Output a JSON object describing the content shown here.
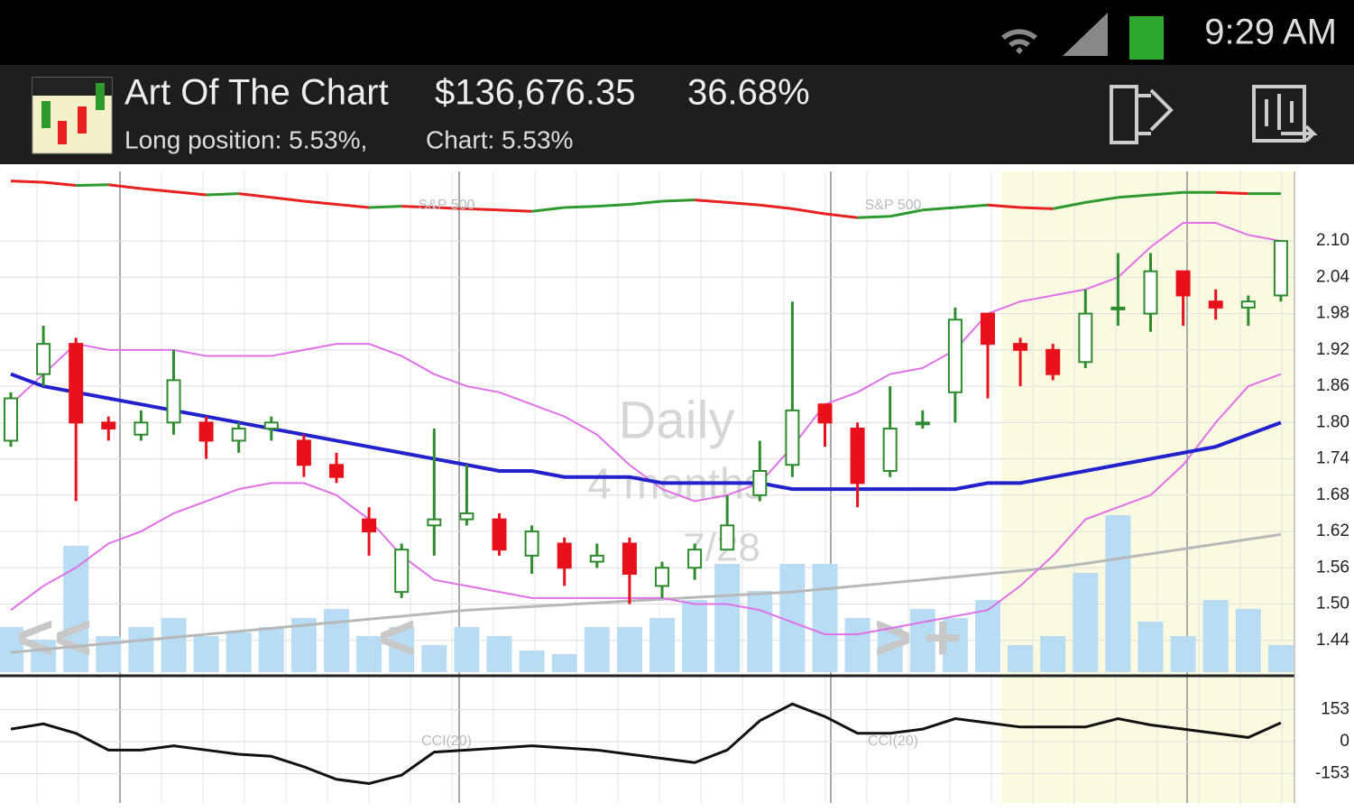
{
  "status_bar": {
    "time": "9:29 AM"
  },
  "header": {
    "app": "Art Of The Chart",
    "value": "$136,676.35",
    "return": "36.68%",
    "position": "Long position: 5.53%,",
    "chart": "Chart: 5.53%"
  },
  "chart_data": {
    "type": "candlestick",
    "ohlc": [
      [
        1.77,
        1.85,
        1.76,
        1.84
      ],
      [
        1.88,
        1.96,
        1.86,
        1.93
      ],
      [
        1.93,
        1.94,
        1.67,
        1.8
      ],
      [
        1.8,
        1.81,
        1.77,
        1.79
      ],
      [
        1.78,
        1.82,
        1.77,
        1.8
      ],
      [
        1.8,
        1.92,
        1.78,
        1.87
      ],
      [
        1.8,
        1.81,
        1.74,
        1.77
      ],
      [
        1.77,
        1.8,
        1.75,
        1.79
      ],
      [
        1.79,
        1.81,
        1.77,
        1.8
      ],
      [
        1.77,
        1.78,
        1.71,
        1.73
      ],
      [
        1.73,
        1.75,
        1.7,
        1.71
      ],
      [
        1.64,
        1.66,
        1.58,
        1.62
      ],
      [
        1.52,
        1.6,
        1.51,
        1.59
      ],
      [
        1.63,
        1.79,
        1.58,
        1.64
      ],
      [
        1.64,
        1.73,
        1.63,
        1.65
      ],
      [
        1.64,
        1.65,
        1.58,
        1.59
      ],
      [
        1.58,
        1.63,
        1.55,
        1.62
      ],
      [
        1.6,
        1.61,
        1.53,
        1.56
      ],
      [
        1.57,
        1.6,
        1.56,
        1.58
      ],
      [
        1.6,
        1.61,
        1.5,
        1.55
      ],
      [
        1.53,
        1.57,
        1.51,
        1.56
      ],
      [
        1.56,
        1.6,
        1.54,
        1.59
      ],
      [
        1.59,
        1.68,
        1.59,
        1.63
      ],
      [
        1.68,
        1.77,
        1.67,
        1.72
      ],
      [
        1.73,
        2.0,
        1.71,
        1.82
      ],
      [
        1.83,
        1.83,
        1.76,
        1.8
      ],
      [
        1.79,
        1.8,
        1.66,
        1.7
      ],
      [
        1.72,
        1.86,
        1.71,
        1.79
      ],
      [
        1.8,
        1.82,
        1.79,
        1.8
      ],
      [
        1.85,
        1.99,
        1.8,
        1.97
      ],
      [
        1.98,
        1.98,
        1.84,
        1.93
      ],
      [
        1.93,
        1.94,
        1.86,
        1.92
      ],
      [
        1.92,
        1.93,
        1.87,
        1.88
      ],
      [
        1.9,
        2.02,
        1.89,
        1.98
      ],
      [
        1.99,
        2.08,
        1.96,
        1.99
      ],
      [
        1.98,
        2.08,
        1.95,
        2.05
      ],
      [
        2.05,
        2.05,
        1.96,
        2.01
      ],
      [
        2.0,
        2.02,
        1.97,
        1.99
      ],
      [
        1.99,
        2.01,
        1.96,
        2.0
      ],
      [
        2.01,
        2.1,
        2.0,
        2.1
      ]
    ],
    "up_color": "#2e8b2e",
    "down_color": "#e8101a",
    "overlays": [
      {
        "color": "#b8b8b8",
        "values": [
          1.42,
          1.425,
          1.43,
          1.435,
          1.44,
          1.445,
          1.45,
          1.455,
          1.46,
          1.465,
          1.47,
          1.475,
          1.48,
          1.485,
          1.49,
          1.493,
          1.496,
          1.499,
          1.502,
          1.505,
          1.508,
          1.511,
          1.514,
          1.517,
          1.52,
          1.525,
          1.53,
          1.535,
          1.54,
          1.545,
          1.55,
          1.555,
          1.56,
          1.567,
          1.575,
          1.583,
          1.591,
          1.599,
          1.607,
          1.615
        ]
      },
      {
        "color": "#e070e8",
        "values": [
          1.83,
          1.88,
          1.93,
          1.92,
          1.92,
          1.92,
          1.91,
          1.91,
          1.91,
          1.92,
          1.93,
          1.93,
          1.91,
          1.88,
          1.86,
          1.85,
          1.83,
          1.81,
          1.78,
          1.73,
          1.69,
          1.67,
          1.68,
          1.7,
          1.76,
          1.83,
          1.85,
          1.88,
          1.89,
          1.92,
          1.98,
          2.0,
          2.01,
          2.02,
          2.04,
          2.09,
          2.13,
          2.13,
          2.11,
          2.1
        ]
      },
      {
        "color": "#e070e8",
        "values": [
          1.49,
          1.53,
          1.56,
          1.6,
          1.62,
          1.65,
          1.67,
          1.69,
          1.7,
          1.7,
          1.68,
          1.64,
          1.58,
          1.54,
          1.53,
          1.52,
          1.51,
          1.51,
          1.51,
          1.51,
          1.51,
          1.5,
          1.5,
          1.49,
          1.47,
          1.45,
          1.45,
          1.46,
          1.47,
          1.48,
          1.49,
          1.53,
          1.58,
          1.64,
          1.66,
          1.68,
          1.73,
          1.8,
          1.86,
          1.88
        ]
      },
      {
        "color": "#2222cc",
        "values": [
          1.88,
          1.86,
          1.85,
          1.84,
          1.83,
          1.82,
          1.81,
          1.8,
          1.79,
          1.78,
          1.77,
          1.76,
          1.75,
          1.74,
          1.73,
          1.72,
          1.72,
          1.71,
          1.71,
          1.71,
          1.7,
          1.7,
          1.7,
          1.7,
          1.69,
          1.69,
          1.69,
          1.69,
          1.69,
          1.69,
          1.7,
          1.7,
          1.71,
          1.72,
          1.73,
          1.74,
          1.75,
          1.76,
          1.78,
          1.8
        ]
      }
    ],
    "volume": {
      "color": "#b8dcf4",
      "lim": [
        0,
        100
      ],
      "values": [
        25,
        18,
        70,
        20,
        25,
        30,
        20,
        22,
        25,
        30,
        35,
        20,
        25,
        15,
        25,
        20,
        12,
        10,
        25,
        25,
        30,
        40,
        60,
        45,
        60,
        60,
        30,
        25,
        35,
        30,
        40,
        15,
        20,
        55,
        87,
        28,
        20,
        40,
        35,
        15
      ]
    },
    "sp500": {
      "label": "S&P 500",
      "up_color": "#2e9a2e",
      "down_color": "#e82020",
      "lim": [
        0,
        100
      ],
      "values": [
        92,
        90,
        85,
        86,
        80,
        75,
        70,
        72,
        66,
        60,
        55,
        50,
        52,
        50,
        48,
        46,
        44,
        50,
        52,
        55,
        60,
        62,
        58,
        54,
        48,
        40,
        34,
        36,
        46,
        50,
        54,
        50,
        48,
        58,
        66,
        70,
        74,
        74,
        72,
        72
      ]
    },
    "ylim": [
      1.383,
      2.215
    ],
    "yticks": [
      {
        "value": 2.1,
        "label": "2.10"
      },
      {
        "value": 2.04,
        "label": "2.04"
      },
      {
        "value": 1.98,
        "label": "1.98"
      },
      {
        "value": 1.92,
        "label": "1.92"
      },
      {
        "value": 1.86,
        "label": "1.86"
      },
      {
        "value": 1.8,
        "label": "1.80"
      },
      {
        "value": 1.74,
        "label": "1.74"
      },
      {
        "value": 1.68,
        "label": "1.68"
      },
      {
        "value": 1.62,
        "label": "1.62"
      },
      {
        "value": 1.56,
        "label": "1.56"
      },
      {
        "value": 1.5,
        "label": "1.50"
      },
      {
        "value": 1.44,
        "label": "1.44"
      }
    ],
    "cci": {
      "label": "CCI(20)",
      "color": "#111111",
      "ylim": [
        -293,
        302
      ],
      "yticks": [
        153,
        0,
        -153
      ],
      "values": [
        60,
        85,
        40,
        -40,
        -40,
        -20,
        -40,
        -60,
        -70,
        -120,
        -180,
        -200,
        -160,
        -50,
        -40,
        -30,
        -20,
        -30,
        -40,
        -60,
        -80,
        -100,
        -40,
        100,
        180,
        120,
        40,
        40,
        60,
        110,
        90,
        70,
        70,
        70,
        110,
        80,
        60,
        40,
        20,
        90
      ]
    },
    "watermark": {
      "period": "Daily",
      "range": "4 months",
      "date": "7/28"
    },
    "nav": [
      "<<",
      "<",
      ">",
      "+"
    ]
  }
}
